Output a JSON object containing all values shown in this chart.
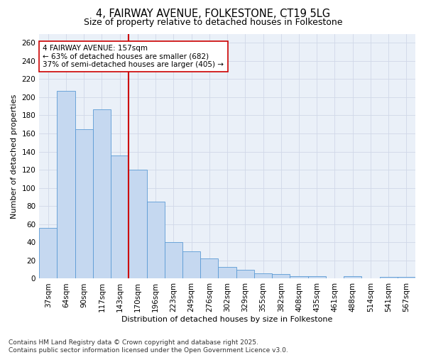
{
  "title_line1": "4, FAIRWAY AVENUE, FOLKESTONE, CT19 5LG",
  "title_line2": "Size of property relative to detached houses in Folkestone",
  "xlabel": "Distribution of detached houses by size in Folkestone",
  "ylabel": "Number of detached properties",
  "categories": [
    "37sqm",
    "64sqm",
    "90sqm",
    "117sqm",
    "143sqm",
    "170sqm",
    "196sqm",
    "223sqm",
    "249sqm",
    "276sqm",
    "302sqm",
    "329sqm",
    "355sqm",
    "382sqm",
    "408sqm",
    "435sqm",
    "461sqm",
    "488sqm",
    "514sqm",
    "541sqm",
    "567sqm"
  ],
  "values": [
    56,
    207,
    165,
    187,
    136,
    120,
    85,
    40,
    30,
    22,
    13,
    10,
    6,
    5,
    3,
    3,
    0,
    3,
    0,
    2,
    2
  ],
  "bar_color": "#c5d8f0",
  "bar_edge_color": "#5b9bd5",
  "vline_pos": 4.5,
  "vline_color": "#cc0000",
  "annotation_text": "4 FAIRWAY AVENUE: 157sqm\n← 63% of detached houses are smaller (682)\n37% of semi-detached houses are larger (405) →",
  "annotation_box_color": "#ffffff",
  "annotation_box_edge": "#cc0000",
  "ylim": [
    0,
    270
  ],
  "yticks": [
    0,
    20,
    40,
    60,
    80,
    100,
    120,
    140,
    160,
    180,
    200,
    220,
    240,
    260
  ],
  "grid_color": "#d0d8e8",
  "background_color": "#eaf0f8",
  "footer_text": "Contains HM Land Registry data © Crown copyright and database right 2025.\nContains public sector information licensed under the Open Government Licence v3.0.",
  "title_fontsize": 10.5,
  "subtitle_fontsize": 9,
  "axis_label_fontsize": 8,
  "tick_fontsize": 7.5,
  "annotation_fontsize": 7.5,
  "footer_fontsize": 6.5
}
